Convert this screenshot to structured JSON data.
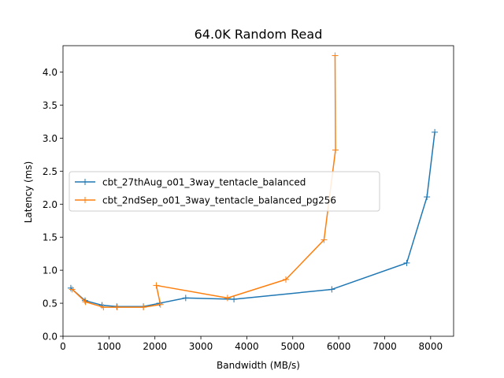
{
  "chart_data": {
    "type": "line",
    "title": "64.0K  Random Read",
    "xlabel": "Bandwidth (MB/s)",
    "ylabel": "Latency (ms)",
    "xlim": [
      0,
      8500
    ],
    "ylim": [
      0,
      4.4
    ],
    "xticks": [
      0,
      1000,
      2000,
      3000,
      4000,
      5000,
      6000,
      7000,
      8000
    ],
    "yticks": [
      0.0,
      0.5,
      1.0,
      1.5,
      2.0,
      2.5,
      3.0,
      3.5,
      4.0
    ],
    "xtick_labels": [
      "0",
      "1000",
      "2000",
      "3000",
      "4000",
      "5000",
      "6000",
      "7000",
      "8000"
    ],
    "ytick_labels": [
      "0.0",
      "0.5",
      "1.0",
      "1.5",
      "2.0",
      "2.5",
      "3.0",
      "3.5",
      "4.0"
    ],
    "grid": false,
    "legend_position": "center-left",
    "marker": "plus",
    "series": [
      {
        "name": "cbt_27thAug_o01_3way_tentacle_balanced",
        "color": "#1f77b4",
        "points": [
          [
            170,
            0.73
          ],
          [
            480,
            0.54
          ],
          [
            850,
            0.47
          ],
          [
            1170,
            0.45
          ],
          [
            1750,
            0.45
          ],
          [
            2100,
            0.5
          ],
          [
            2670,
            0.58
          ],
          [
            3720,
            0.56
          ],
          [
            5850,
            0.71
          ],
          [
            7480,
            1.11
          ],
          [
            7920,
            2.11
          ],
          [
            8090,
            3.09
          ]
        ]
      },
      {
        "name": "cbt_2ndSep_o01_3way_tentacle_balanced_pg256",
        "color": "#ff7f0e",
        "points": [
          [
            200,
            0.71
          ],
          [
            490,
            0.52
          ],
          [
            880,
            0.44
          ],
          [
            1180,
            0.44
          ],
          [
            1750,
            0.44
          ],
          [
            2120,
            0.48
          ],
          [
            2030,
            0.77
          ],
          [
            3580,
            0.58
          ],
          [
            4850,
            0.86
          ],
          [
            5680,
            1.46
          ],
          [
            5930,
            2.82
          ],
          [
            5920,
            4.25
          ]
        ]
      }
    ]
  }
}
